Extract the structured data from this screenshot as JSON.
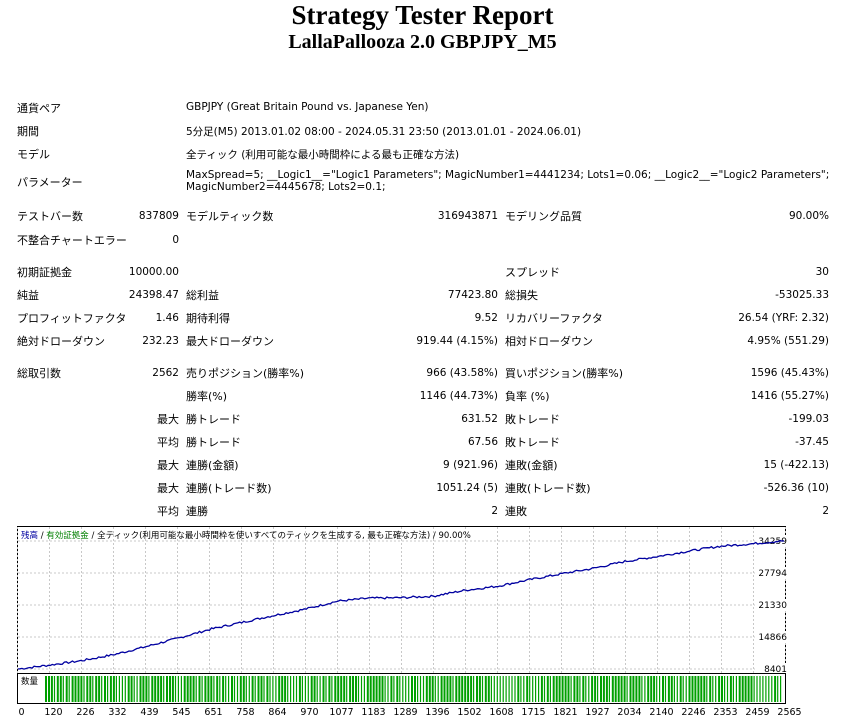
{
  "report": {
    "title": "Strategy Tester Report",
    "subtitle": "LallaPallooza 2.0 GBPJPY_M5"
  },
  "info": {
    "symbol_label": "通貨ペア",
    "symbol_value": "GBPJPY (Great Britain Pound vs. Japanese Yen)",
    "period_label": "期間",
    "period_value": "5分足(M5) 2013.01.02 08:00 - 2024.05.31 23:50 (2013.01.01 - 2024.06.01)",
    "model_label": "モデル",
    "model_value": "全ティック (利用可能な最小時間枠による最も正確な方法)",
    "params_label": "パラメーター",
    "params_line1": "MaxSpread=5; __Logic1__=\"Logic1 Parameters\"; MagicNumber1=4441234; Lots1=0.06; __Logic2__=\"Logic2 Parameters\";",
    "params_line2": "MagicNumber2=4445678; Lots2=0.1;"
  },
  "stats": {
    "bars_label": "テストバー数",
    "bars_value": "837809",
    "ticks_label": "モデルティック数",
    "ticks_value": "316943871",
    "quality_label": "モデリング品質",
    "quality_value": "90.00%",
    "mismatch_label": "不整合チャートエラー",
    "mismatch_value": "0",
    "deposit_label": "初期証拠金",
    "deposit_value": "10000.00",
    "spread_label": "スプレッド",
    "spread_value": "30",
    "netprofit_label": "純益",
    "netprofit_value": "24398.47",
    "grossprofit_label": "総利益",
    "grossprofit_value": "77423.80",
    "grossloss_label": "総損失",
    "grossloss_value": "-53025.33",
    "pf_label": "プロフィットファクタ",
    "pf_value": "1.46",
    "expected_label": "期待利得",
    "expected_value": "9.52",
    "rf_label": "リカバリーファクタ",
    "rf_value": "26.54 (YRF: 2.32)",
    "absdd_label": "絶対ドローダウン",
    "absdd_value": "232.23",
    "maxdd_label": "最大ドローダウン",
    "maxdd_value": "919.44 (4.15%)",
    "reldd_label": "相対ドローダウン",
    "reldd_value": "4.95% (551.29)",
    "trades_label": "総取引数",
    "trades_value": "2562",
    "short_label": "売りポジション(勝率%)",
    "short_value": "966 (43.58%)",
    "long_label": "買いポジション(勝率%)",
    "long_value": "1596 (45.43%)",
    "winpct_label": "勝率(%)",
    "winpct_value": "1146 (44.73%)",
    "losspct_label": "負率 (%)",
    "losspct_value": "1416 (55.27%)",
    "max_label": "最大",
    "avg_label": "平均",
    "largest_win_label": "勝トレード",
    "largest_win_value": "631.52",
    "largest_loss_label": "敗トレード",
    "largest_loss_value": "-199.03",
    "avg_win_label": "勝トレード",
    "avg_win_value": "67.56",
    "avg_loss_label": "敗トレード",
    "avg_loss_value": "-37.45",
    "max_consec_wins_label": "連勝(金額)",
    "max_consec_wins_value": "9 (921.96)",
    "max_consec_losses_label": "連敗(金額)",
    "max_consec_losses_value": "15 (-422.13)",
    "max_consec_profit_label": "連勝(トレード数)",
    "max_consec_profit_value": "1051.24 (5)",
    "max_consec_loss_label": "連敗(トレード数)",
    "max_consec_loss_value": "-526.36 (10)",
    "avg_consec_wins_label": "連勝",
    "avg_consec_wins_value": "2",
    "avg_consec_losses_label": "連敗",
    "avg_consec_losses_value": "2"
  },
  "chart_legend": {
    "balance": "残高",
    "sep1": " / ",
    "equity": "有効証拠金",
    "sep2": " / ",
    "model": "全ティック(利用可能な最小時間枠を使いすべてのティックを生成する, 最も正確な方法)",
    "sep3": " / ",
    "quality": "90.00%",
    "volume": "数量"
  },
  "colors": {
    "balance": "#0000a0",
    "equity": "#008000",
    "volume": "#00a000",
    "grid": "#c8c8c8"
  },
  "chart_data": {
    "type": "line",
    "series": [
      {
        "name": "残高",
        "values": [
          8401,
          9200,
          10100,
          11300,
          12900,
          14600,
          16400,
          17800,
          19200,
          20500,
          22100,
          22700,
          22800,
          23100,
          24300,
          25100,
          26400,
          27600,
          28700,
          30100,
          31100,
          32200,
          33200,
          33700,
          34300
        ]
      }
    ],
    "x_ticks": [
      "0",
      "120",
      "226",
      "332",
      "439",
      "545",
      "651",
      "758",
      "864",
      "970",
      "1077",
      "1183",
      "1289",
      "1396",
      "1502",
      "1608",
      "1715",
      "1821",
      "1927",
      "2034",
      "2140",
      "2246",
      "2353",
      "2459",
      "2565"
    ],
    "y_ticks": [
      "34259",
      "27794",
      "21330",
      "14866",
      "8401"
    ],
    "ylim": [
      8401,
      34259
    ],
    "xlim": [
      0,
      2562
    ],
    "grid": true
  }
}
